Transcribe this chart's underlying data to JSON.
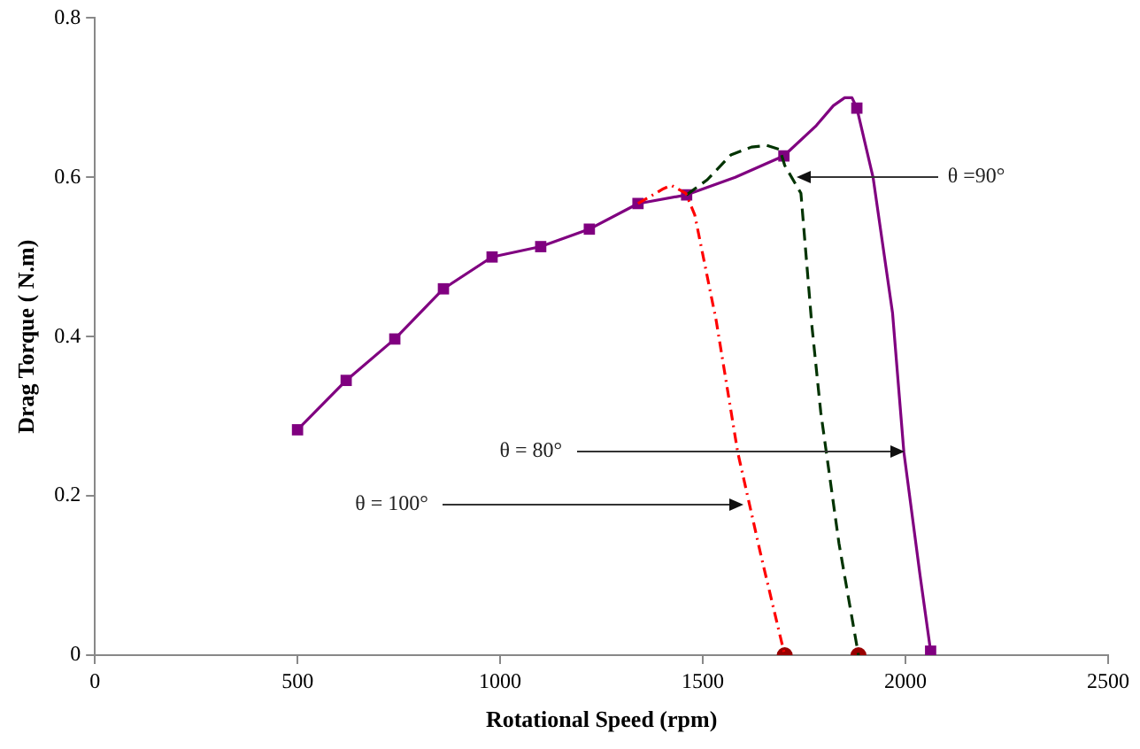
{
  "chart_data": {
    "type": "line",
    "xlabel": "Rotational Speed (rpm)",
    "ylabel": "Drag Torque ( N.m)",
    "xlim": [
      0,
      2500
    ],
    "xticks": [
      0,
      500,
      1000,
      1500,
      2000,
      2500
    ],
    "ylim": [
      0,
      0.8
    ],
    "yticks": [
      0,
      0.2,
      0.4,
      0.6,
      0.8
    ],
    "grid": false,
    "legend": false,
    "series": [
      {
        "type": "line",
        "color": "#ff0000",
        "line_style": "dotted",
        "marker": "none",
        "x": [
          1340,
          1400,
          1422,
          1458,
          1480,
          1533,
          1586,
          1644,
          1702
        ],
        "values": [
          0.567,
          0.585,
          0.59,
          0.58,
          0.553,
          0.42,
          0.255,
          0.124,
          0
        ]
      },
      {
        "type": "line",
        "color": "#003300",
        "line_style": "dashed",
        "marker": "none",
        "x": [
          1460,
          1511,
          1569,
          1620,
          1658,
          1690,
          1702,
          1742,
          1769,
          1791,
          1836,
          1884
        ],
        "values": [
          0.578,
          0.597,
          0.628,
          0.638,
          0.64,
          0.635,
          0.615,
          0.58,
          0.414,
          0.305,
          0.14,
          0
        ]
      },
      {
        "type": "line",
        "color": "#800080",
        "line_style": "solid",
        "marker": "none",
        "x": [
          500,
          620,
          740,
          860,
          980,
          1100,
          1220,
          1340,
          1460,
          1580,
          1700,
          1780,
          1822,
          1850,
          1868,
          1880,
          1920,
          1968,
          1996,
          2036,
          2062
        ],
        "values": [
          0.283,
          0.345,
          0.397,
          0.46,
          0.5,
          0.513,
          0.535,
          0.567,
          0.578,
          0.6,
          0.627,
          0.665,
          0.69,
          0.7,
          0.7,
          0.687,
          0.6,
          0.43,
          0.255,
          0.1,
          0.005
        ]
      },
      {
        "type": "scatter",
        "color": "#800080",
        "marker": "square",
        "x": [
          500,
          620,
          740,
          860,
          980,
          1100,
          1220,
          1340,
          1460,
          1700,
          1880,
          2062
        ],
        "values": [
          0.283,
          0.345,
          0.397,
          0.46,
          0.5,
          0.513,
          0.535,
          0.567,
          0.578,
          0.627,
          0.687,
          0.005
        ]
      },
      {
        "type": "scatter",
        "color": "#990000",
        "marker": "circle",
        "x": [
          1702,
          1884
        ],
        "values": [
          0,
          0
        ]
      }
    ],
    "annotations": [
      {
        "text": "θ =90°",
        "x": 1733,
        "y": 0.6
      },
      {
        "text": "θ = 80°",
        "x": 1996,
        "y": 0.255
      },
      {
        "text": "θ = 100°",
        "x": 1600,
        "y": 0.19
      }
    ]
  }
}
